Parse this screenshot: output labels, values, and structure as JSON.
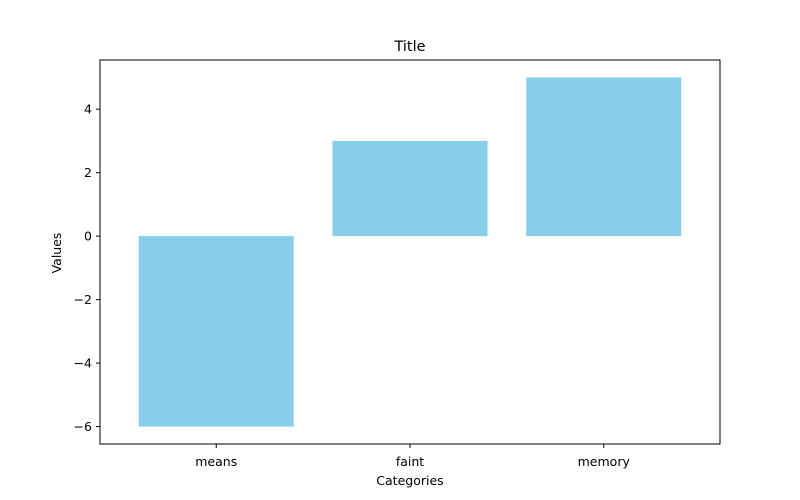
{
  "chart_data": {
    "type": "bar",
    "title": "Title",
    "xlabel": "Categories",
    "ylabel": "Values",
    "categories": [
      "means",
      "faint",
      "memory"
    ],
    "values": [
      -6,
      3,
      5
    ],
    "ylim": [
      -6.55,
      5.55
    ],
    "yticks": [
      -6,
      -4,
      -2,
      0,
      2,
      4
    ],
    "ytick_labels": [
      "−6",
      "−4",
      "−2",
      "0",
      "2",
      "4"
    ],
    "bar_color": "#87ceeb",
    "grid": false,
    "legend": "none"
  }
}
